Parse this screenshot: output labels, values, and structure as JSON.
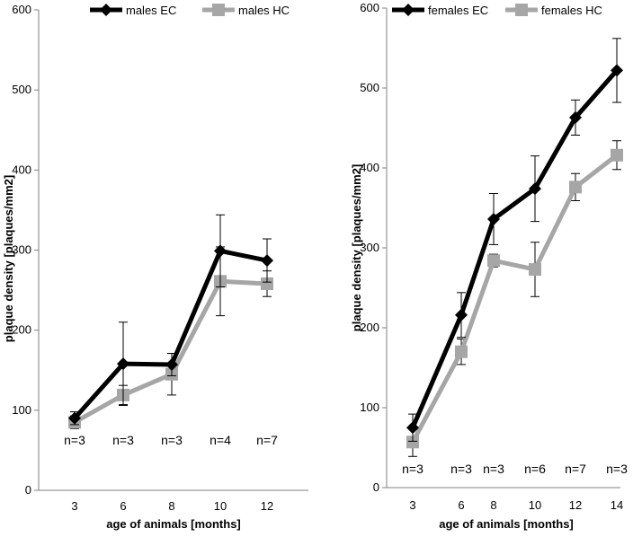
{
  "chart_data": [
    {
      "type": "line",
      "ylabel": "plaque density [plaques/mm2]",
      "xlabel": "age of animals [months]",
      "categories": [
        "3",
        "6",
        "8",
        "10",
        "12"
      ],
      "ylim": [
        0,
        600
      ],
      "yticks": [
        "0",
        "100",
        "200",
        "300",
        "400",
        "500",
        "600"
      ],
      "grid": false,
      "legend_position": "top",
      "n_labels": [
        "n=3",
        "n=3",
        "n=3",
        "n=4",
        "n=7"
      ],
      "series": [
        {
          "name": "males EC",
          "color": "#000000",
          "marker": "diamond",
          "values": [
            90,
            158,
            157,
            299,
            287
          ],
          "errors": [
            8,
            52,
            14,
            45,
            27
          ]
        },
        {
          "name": "males HC",
          "color": "#a6a6a6",
          "marker": "square",
          "values": [
            85,
            119,
            145,
            261,
            258
          ],
          "errors": [
            8,
            12,
            26,
            43,
            16
          ]
        }
      ]
    },
    {
      "type": "line",
      "ylabel": "plaque density [plaques/mm2]",
      "xlabel": "age of animals [months]",
      "categories": [
        "3",
        "6",
        "8",
        "10",
        "12",
        "14"
      ],
      "ylim": [
        0,
        600
      ],
      "yticks": [
        "0",
        "100",
        "200",
        "300",
        "400",
        "500",
        "600"
      ],
      "grid": false,
      "legend_position": "top",
      "n_labels": [
        "n=3",
        "n=3",
        "n=3",
        "n=6",
        "n=7",
        "n=3"
      ],
      "series": [
        {
          "name": "females EC",
          "color": "#000000",
          "marker": "diamond",
          "values": [
            75,
            216,
            336,
            374,
            463,
            522
          ],
          "errors": [
            17,
            28,
            32,
            41,
            22,
            40
          ]
        },
        {
          "name": "females HC",
          "color": "#a6a6a6",
          "marker": "square",
          "values": [
            57,
            170,
            284,
            273,
            376,
            416
          ],
          "errors": [
            18,
            16,
            8,
            34,
            17,
            18
          ]
        }
      ]
    }
  ]
}
